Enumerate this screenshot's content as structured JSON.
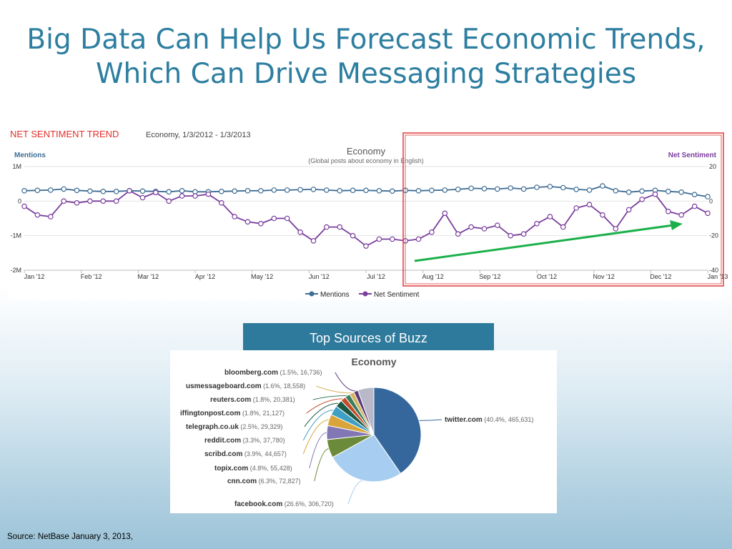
{
  "slide": {
    "title_line1": "Big Data Can Help Us Forecast Economic Trends,",
    "title_line2": "Which Can Drive Messaging Strategies",
    "source": "Source: NetBase January 3, 2013,"
  },
  "trend_panel": {
    "heading": "NET SENTIMENT TREND",
    "subheading": "Economy, 1/3/2012 - 1/3/2013"
  },
  "buzz": {
    "header": "Top Sources of Buzz"
  },
  "colors": {
    "title": "#2d7ea0",
    "mentions": "#3e6d95",
    "net_sentiment": "#7a3e9d",
    "highlight_box": "#e03a3a",
    "trend_arrow": "#1bb04a",
    "buzz_header_bg": "#2e7a9c"
  },
  "chart_data": [
    {
      "type": "line",
      "title": "Economy",
      "subtitle": "(Global posts about economy in English)",
      "left_axis_label": "Mentions",
      "right_axis_label": "Net Sentiment",
      "left_ticks": [
        "1M",
        "0",
        "-1M",
        "-2M"
      ],
      "left_range": [
        -2000000,
        1000000
      ],
      "right_ticks": [
        "20",
        "0",
        "-20",
        "-40"
      ],
      "right_range": [
        -40,
        20
      ],
      "x_labels": [
        "Jan '12",
        "Feb '12",
        "Mar '12",
        "Apr '12",
        "May '12",
        "Jun '12",
        "Jul '12",
        "Aug '12",
        "Sep '12",
        "Oct '12",
        "Nov '12",
        "Dec '12",
        "Jan '13"
      ],
      "x_start": 0,
      "x_end": 52,
      "legend": [
        "Mentions",
        "Net Sentiment"
      ],
      "legend_position": "bottom",
      "series": [
        {
          "name": "Mentions",
          "axis": "left",
          "values": [
            300000,
            310000,
            320000,
            350000,
            310000,
            290000,
            280000,
            280000,
            300000,
            290000,
            280000,
            270000,
            300000,
            270000,
            270000,
            280000,
            290000,
            300000,
            300000,
            320000,
            320000,
            330000,
            340000,
            320000,
            300000,
            310000,
            310000,
            300000,
            290000,
            310000,
            300000,
            310000,
            320000,
            340000,
            370000,
            360000,
            350000,
            380000,
            350000,
            400000,
            420000,
            390000,
            340000,
            320000,
            440000,
            300000,
            260000,
            290000,
            310000,
            280000,
            260000,
            190000,
            130000
          ],
          "points_shown": [
            true,
            true,
            true,
            true,
            true,
            true,
            true,
            true,
            true,
            true,
            true,
            true,
            true,
            true,
            true,
            true,
            true,
            true,
            true,
            true,
            true,
            true,
            true,
            true,
            true,
            true,
            true,
            true,
            true,
            true,
            true,
            true,
            true,
            true,
            true,
            true,
            true,
            true,
            true,
            true,
            true,
            true,
            true,
            true,
            true,
            true,
            true,
            true,
            true,
            true,
            true,
            true,
            true
          ]
        },
        {
          "name": "Net Sentiment",
          "axis": "right",
          "values": [
            -3,
            -8,
            -9,
            0,
            -1,
            0,
            0,
            0,
            6,
            2,
            5,
            0,
            3,
            3,
            4,
            -1,
            -9,
            -12,
            -13,
            -10,
            -10,
            -18,
            -23,
            -15,
            -15,
            -20,
            -26,
            -22,
            -22,
            -23,
            -22,
            -18,
            -7,
            -19,
            -15,
            -16,
            -14,
            -20,
            -19,
            -13,
            -9,
            -15,
            -4,
            -2,
            -8,
            -16,
            -5,
            1,
            4,
            -6,
            -8,
            -3,
            -7
          ]
        }
      ],
      "annotation": "highlighted trend Aug '12 – Jan '13 with upward arrow"
    },
    {
      "type": "pie",
      "title": "Economy",
      "slices": [
        {
          "label": "twitter.com",
          "detail": "(40.4%, 465,631)",
          "value": 40.4,
          "color": "#35679c"
        },
        {
          "label": "facebook.com",
          "detail": "(26.6%, 306,720)",
          "value": 26.6,
          "color": "#a7cdf0"
        },
        {
          "label": "cnn.com",
          "detail": "(6.3%, 72,827)",
          "value": 6.3,
          "color": "#6b8a3a"
        },
        {
          "label": "topix.com",
          "detail": "(4.8%, 55,428)",
          "value": 4.8,
          "color": "#8277b5"
        },
        {
          "label": "scribd.com",
          "detail": "(3.9%, 44,657)",
          "value": 3.9,
          "color": "#d9a43a"
        },
        {
          "label": "reddit.com",
          "detail": "(3.3%, 37,780)",
          "value": 3.3,
          "color": "#3fa0c3"
        },
        {
          "label": "telegraph.co.uk",
          "detail": "(2.5%, 29,329)",
          "value": 2.5,
          "color": "#1a5a45"
        },
        {
          "label": "iffingtonpost.com",
          "detail": "(1.8%, 21,127)",
          "value": 1.8,
          "color": "#c44b2a"
        },
        {
          "label": "reuters.com",
          "detail": "(1.8%, 20,381)",
          "value": 1.8,
          "color": "#3c7d5d"
        },
        {
          "label": "usmessageboard.com",
          "detail": "(1.6%, 18,558)",
          "value": 1.6,
          "color": "#d6b560"
        },
        {
          "label": "bloomberg.com",
          "detail": "(1.5%, 16,736)",
          "value": 1.5,
          "color": "#5b3b7b"
        },
        {
          "label": "",
          "detail": "",
          "value": 5.5,
          "color": "#b8b8c8"
        }
      ]
    }
  ]
}
